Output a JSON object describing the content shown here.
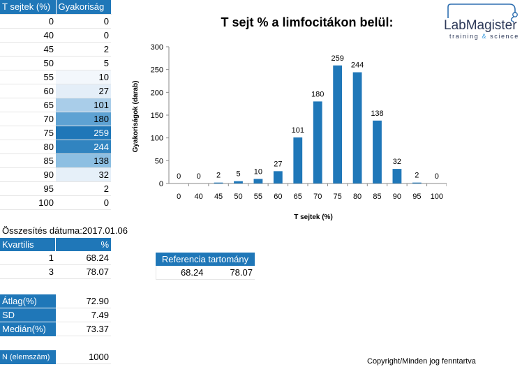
{
  "table": {
    "headers": [
      "T sejtek (%)",
      "Gyakoriság"
    ],
    "rows": [
      [
        "0",
        "0"
      ],
      [
        "40",
        "0"
      ],
      [
        "45",
        "2"
      ],
      [
        "50",
        "5"
      ],
      [
        "55",
        "10"
      ],
      [
        "60",
        "27"
      ],
      [
        "65",
        "101"
      ],
      [
        "70",
        "180"
      ],
      [
        "75",
        "259"
      ],
      [
        "80",
        "244"
      ],
      [
        "85",
        "138"
      ],
      [
        "90",
        "32"
      ],
      [
        "95",
        "2"
      ],
      [
        "100",
        "0"
      ]
    ],
    "row_colors": [
      "#ffffff",
      "#ffffff",
      "#ffffff",
      "#ffffff",
      "#f3f7fc",
      "#e4eef8",
      "#a9cde9",
      "#5ea2d3",
      "#1f77b8",
      "#3184c0",
      "#8dbfe2",
      "#e6f0f9",
      "#ffffff",
      "#ffffff"
    ]
  },
  "summary_date": "Összesítés dátuma:2017.01.06",
  "quartile": {
    "headers": [
      "Kvartilis",
      "%"
    ],
    "rows": [
      [
        "1",
        "68.24"
      ],
      [
        "3",
        "78.07"
      ]
    ]
  },
  "reference": {
    "header": "Referencia tartomány",
    "low": "68.24",
    "high": "78.07"
  },
  "stats": [
    {
      "label": "Átlag(%)",
      "value": "72.90"
    },
    {
      "label": "SD",
      "value": "7.49"
    },
    {
      "label": "Medián(%)",
      "value": "73.37"
    }
  ],
  "n": {
    "label": "N (elemszám)",
    "value": "1000"
  },
  "copyright": "Copyright/Minden jog fenntartva",
  "logo": {
    "name": "LabMagister",
    "tagline_a": "training",
    "tagline_amp": "&",
    "tagline_b": "science"
  },
  "chart_data": {
    "type": "bar",
    "title": "T sejt % a limfocitákon belül:",
    "xlabel": "T sejtek (%)",
    "ylabel": "Gyakoriságok (darab)",
    "categories": [
      "0",
      "40",
      "45",
      "50",
      "55",
      "60",
      "65",
      "70",
      "75",
      "80",
      "85",
      "90",
      "95",
      "100"
    ],
    "values": [
      0,
      0,
      2,
      5,
      10,
      27,
      101,
      180,
      259,
      244,
      138,
      32,
      2,
      0
    ],
    "ylim": [
      0,
      300
    ],
    "yticks": [
      0,
      50,
      100,
      150,
      200,
      250,
      300
    ],
    "bar_color": "#1f77b8",
    "grid": false,
    "data_labels": true
  }
}
